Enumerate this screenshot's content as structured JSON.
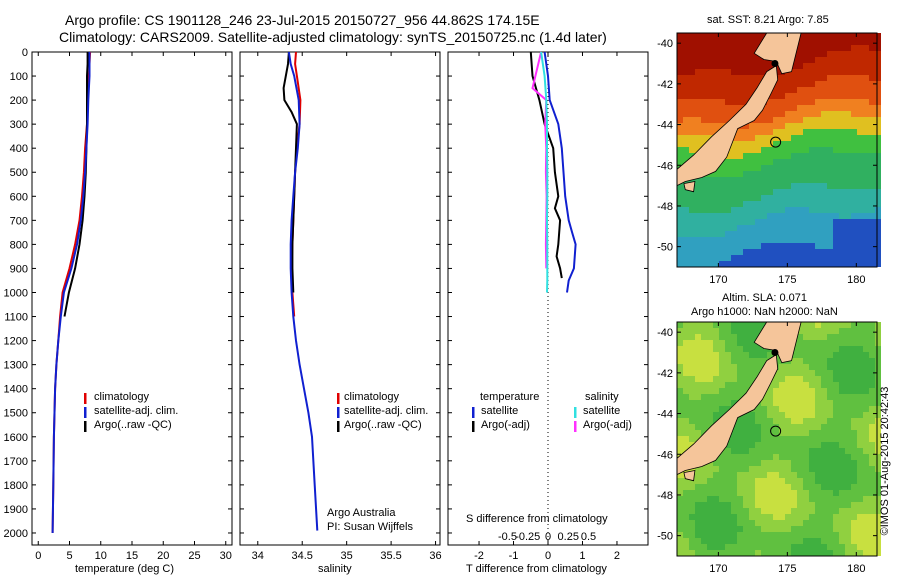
{
  "header": {
    "line1": "Argo profile: CS 1901128_246 23-Jul-2015 20150727_956 44.862S 174.15E",
    "line2": "Climatology: CARS2009. Satellite-adjusted climatology: synTS_20150725.nc (1.4d later)"
  },
  "colors": {
    "climatology": "#e00000",
    "satellite": "#1020d0",
    "argo": "#000000",
    "sat_salinity": "#30e0e0",
    "argo_salinity": "#ff30ff"
  },
  "depth_ticks": [
    "0",
    "100",
    "200",
    "300",
    "400",
    "500",
    "600",
    "700",
    "800",
    "900",
    "1000",
    "1100",
    "1200",
    "1300",
    "1400",
    "1500",
    "1600",
    "1700",
    "1800",
    "1900",
    "2000"
  ],
  "temperature_panel": {
    "xlabel": "temperature (deg C)",
    "x_ticks": [
      "0",
      "5",
      "10",
      "15",
      "20",
      "25",
      "30"
    ],
    "legend": [
      "climatology",
      "satellite-adj. clim.",
      "Argo(..raw -QC)"
    ]
  },
  "salinity_panel": {
    "xlabel": "salinity",
    "x_ticks": [
      "34",
      "34.5",
      "35",
      "35.5",
      "36"
    ],
    "legend": [
      "climatology",
      "satellite-adj. clim.",
      "Argo(..raw -QC)"
    ],
    "credit1": "Argo Australia",
    "credit2": "PI: Susan Wijffels"
  },
  "difference_panel": {
    "xlabel": "T difference from climatology",
    "x_ticks": [
      "-2",
      "-1",
      "0",
      "1",
      "2"
    ],
    "s_label": "S difference from climatology",
    "s_ticks": [
      "-0.5",
      "-0.25",
      "0",
      "0.25",
      "0.5"
    ],
    "legend_temp_title": "temperature",
    "legend_sal_title": "salinity",
    "legend_temp": [
      "satellite",
      "Argo(-adj)"
    ],
    "legend_sal": [
      "satellite",
      "Argo(-adj)"
    ]
  },
  "sst_map": {
    "title": "sat. SST: 8.21  Argo: 7.85",
    "lat_ticks": [
      "-40",
      "-42",
      "-44",
      "-46",
      "-48",
      "-50"
    ],
    "lon_ticks": [
      "170",
      "175",
      "180"
    ]
  },
  "sla_map": {
    "title1": "Altim. SLA: 0.071",
    "title2": "Argo h1000: NaN h2000: NaN",
    "lat_ticks": [
      "-40",
      "-42",
      "-44",
      "-46",
      "-48",
      "-50"
    ],
    "lon_ticks": [
      "170",
      "175",
      "180"
    ]
  },
  "footer_stamp": "©IMOS 01-Aug-2015 20:42:43",
  "chart_data": [
    {
      "type": "line",
      "xlabel": "temperature (deg C)",
      "ylabel": "",
      "xlim": [
        -1,
        31
      ],
      "ylim": [
        2050,
        0
      ],
      "series": [
        {
          "name": "climatology",
          "x": [
            8.3,
            8.2,
            8.1,
            7.9,
            7.8,
            7.5,
            7.3,
            7.0,
            6.6,
            5.9,
            5.0,
            3.9,
            3.5,
            3.2,
            2.9,
            2.7,
            2.6,
            2.5,
            2.4,
            2.3
          ],
          "y": [
            0,
            50,
            100,
            200,
            300,
            400,
            500,
            600,
            700,
            800,
            900,
            1000,
            1100,
            1200,
            1300,
            1400,
            1500,
            1600,
            1800,
            2000
          ]
        },
        {
          "name": "satellite-adj. clim.",
          "x": [
            8.2,
            8.2,
            8.2,
            8.0,
            7.9,
            7.7,
            7.5,
            7.2,
            6.8,
            6.2,
            5.3,
            4.1,
            3.6,
            3.2,
            2.9,
            2.7,
            2.6,
            2.5,
            2.4,
            2.3
          ],
          "y": [
            0,
            50,
            100,
            200,
            300,
            400,
            500,
            600,
            700,
            800,
            900,
            1000,
            1100,
            1200,
            1300,
            1400,
            1500,
            1600,
            1800,
            2000
          ]
        },
        {
          "name": "Argo(..raw -QC)",
          "x": [
            7.9,
            7.9,
            7.8,
            7.8,
            7.8,
            7.7,
            7.6,
            7.4,
            7.1,
            6.6,
            5.9,
            4.9,
            4.2
          ],
          "y": [
            0,
            50,
            100,
            200,
            300,
            400,
            500,
            600,
            700,
            800,
            900,
            1000,
            1100
          ]
        }
      ]
    },
    {
      "type": "line",
      "xlabel": "salinity",
      "ylabel": "",
      "xlim": [
        33.8,
        36.05
      ],
      "ylim": [
        2050,
        0
      ],
      "series": [
        {
          "name": "climatology",
          "x": [
            34.43,
            34.42,
            34.44,
            34.48,
            34.47,
            34.44,
            34.42,
            34.41,
            34.4,
            34.39,
            34.38,
            34.39,
            34.41
          ],
          "y": [
            0,
            50,
            100,
            200,
            300,
            400,
            500,
            600,
            700,
            800,
            900,
            1000,
            1100
          ]
        },
        {
          "name": "satellite-adj. clim.",
          "x": [
            34.35,
            34.37,
            34.41,
            34.46,
            34.47,
            34.45,
            34.42,
            34.4,
            34.38,
            34.37,
            34.37,
            34.38,
            34.4,
            34.43,
            34.47,
            34.52,
            34.57,
            34.61,
            34.64,
            34.67
          ],
          "y": [
            0,
            50,
            100,
            200,
            300,
            400,
            500,
            600,
            700,
            800,
            900,
            1000,
            1100,
            1200,
            1300,
            1400,
            1500,
            1600,
            1800,
            1990
          ]
        },
        {
          "name": "Argo(..raw -QC)",
          "x": [
            34.35,
            34.34,
            34.29,
            34.3,
            34.38,
            34.44,
            34.43,
            34.42,
            34.41,
            34.4,
            34.39,
            34.39,
            34.4
          ],
          "y": [
            0,
            50,
            150,
            200,
            250,
            300,
            400,
            500,
            600,
            700,
            800,
            900,
            1000
          ]
        }
      ]
    },
    {
      "type": "line",
      "xlabel": "T difference from climatology",
      "ylabel": "",
      "xlim": [
        -2.9,
        2.9
      ],
      "ylim": [
        2050,
        0
      ],
      "series": [
        {
          "name": "satellite",
          "x": [
            -0.1,
            -0.05,
            0.0,
            0.05,
            0.3,
            0.4,
            0.45,
            0.5,
            0.6,
            0.7,
            0.8,
            0.75,
            0.6,
            0.55
          ],
          "y": [
            0,
            50,
            100,
            200,
            300,
            400,
            500,
            600,
            700,
            750,
            800,
            900,
            950,
            1000
          ]
        },
        {
          "name": "Argo(-adj)",
          "x": [
            -0.5,
            -0.45,
            -0.25,
            -0.1,
            0.15,
            0.2,
            0.3,
            0.2,
            0.35,
            0.3,
            0.25,
            0.35,
            0.4
          ],
          "y": [
            0,
            100,
            200,
            300,
            400,
            500,
            600,
            650,
            700,
            800,
            850,
            900,
            940
          ]
        },
        {
          "name": "satellite",
          "x": [
            -0.2,
            -0.1,
            -0.05,
            -0.03,
            -0.03,
            -0.02,
            -0.02,
            -0.03,
            -0.02,
            -0.02,
            -0.02,
            -0.03
          ],
          "y": [
            0,
            100,
            200,
            300,
            400,
            500,
            600,
            700,
            800,
            900,
            950,
            1000
          ]
        },
        {
          "name": "Argo(-adj)",
          "x": [
            -0.2,
            -0.45,
            -0.05,
            -0.08,
            -0.05,
            -0.06,
            -0.04,
            -0.05,
            -0.06,
            -0.05
          ],
          "y": [
            0,
            150,
            200,
            300,
            400,
            500,
            600,
            700,
            800,
            900
          ]
        }
      ]
    }
  ]
}
